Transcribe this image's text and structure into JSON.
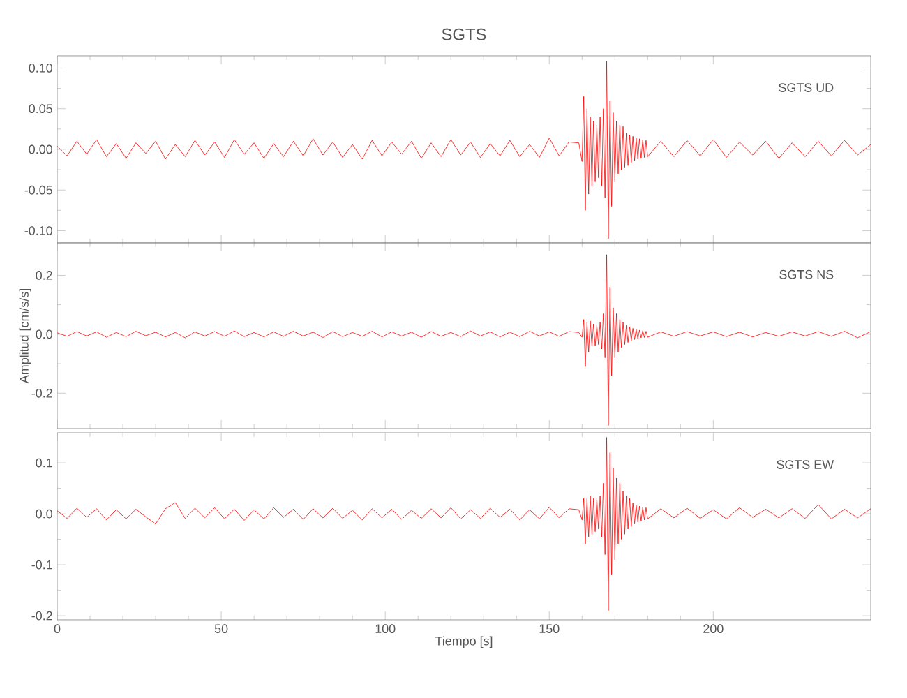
{
  "chart_data": [
    {
      "type": "line",
      "title": "SGTS",
      "annotations": [
        "SGTS UD"
      ],
      "tick_labels": "y",
      "x": [
        0,
        3,
        6,
        9,
        12,
        15,
        18,
        21,
        24,
        27,
        30,
        33,
        36,
        39,
        42,
        45,
        48,
        51,
        54,
        57,
        60,
        63,
        66,
        69,
        72,
        75,
        78,
        81,
        84,
        87,
        90,
        93,
        96,
        99,
        102,
        105,
        108,
        111,
        114,
        117,
        120,
        123,
        126,
        129,
        132,
        135,
        138,
        141,
        144,
        147,
        150,
        153,
        156,
        159,
        160,
        160.5,
        161,
        161.5,
        162,
        162.5,
        163,
        163.5,
        164,
        164.5,
        165,
        165.5,
        166,
        166.5,
        167,
        167.5,
        168,
        168.5,
        169,
        169.5,
        170,
        170.5,
        171,
        171.5,
        172,
        172.5,
        173,
        173.5,
        174,
        174.5,
        175,
        175.5,
        176,
        176.5,
        177,
        177.5,
        178,
        178.5,
        179,
        179.5,
        180,
        184,
        188,
        192,
        196,
        200,
        204,
        208,
        212,
        216,
        220,
        224,
        228,
        232,
        236,
        240,
        244,
        248
      ],
      "series": [
        {
          "color": "#ff0000",
          "values": [
            0.004,
            -0.008,
            0.01,
            -0.006,
            0.012,
            -0.009,
            0.007,
            -0.011,
            0.008,
            -0.005,
            0.01,
            -0.012,
            0.006,
            -0.009,
            0.011,
            -0.007,
            0.009,
            -0.01,
            0.012,
            -0.006,
            0.008,
            -0.011,
            0.007,
            -0.009,
            0.01,
            -0.008,
            0.013,
            -0.007,
            0.009,
            -0.01,
            0.006,
            -0.012,
            0.011,
            -0.008,
            0.009,
            -0.006,
            0.01,
            -0.011,
            0.008,
            -0.009,
            0.012,
            -0.007,
            0.009,
            -0.01,
            0.007,
            -0.008,
            0.011,
            -0.009,
            0.006,
            -0.01,
            0.014,
            -0.008,
            0.009,
            0.008,
            -0.015,
            0.065,
            -0.075,
            0.05,
            -0.055,
            0.04,
            -0.045,
            0.035,
            -0.04,
            0.03,
            -0.035,
            0.04,
            -0.045,
            0.05,
            -0.06,
            0.108,
            -0.11,
            0.06,
            -0.07,
            0.045,
            -0.04,
            0.035,
            -0.03,
            0.03,
            -0.025,
            0.028,
            -0.022,
            0.02,
            -0.02,
            0.018,
            -0.016,
            0.016,
            -0.014,
            0.014,
            -0.012,
            0.013,
            -0.011,
            0.012,
            -0.01,
            0.011,
            -0.009,
            0.01,
            -0.009,
            0.011,
            -0.008,
            0.012,
            -0.01,
            0.009,
            -0.007,
            0.01,
            -0.011,
            0.008,
            -0.009,
            0.01,
            -0.008,
            0.011,
            -0.007,
            0.006
          ]
        }
      ],
      "xlim": [
        0,
        248
      ],
      "ylim": [
        -0.115,
        0.115
      ],
      "xticks": [
        0,
        50,
        100,
        150,
        200
      ],
      "yticks": [
        {
          "value": -0.1,
          "label": "-0.10"
        },
        {
          "value": -0.05,
          "label": "-0.05"
        },
        {
          "value": 0,
          "label": "0.00"
        },
        {
          "value": 0.05,
          "label": "0.05"
        },
        {
          "value": 0.1,
          "label": "0.10"
        }
      ]
    },
    {
      "type": "line",
      "ylabel": "Amplitud [cm/s/s]",
      "annotations": [
        "SGTS NS"
      ],
      "tick_labels": "y",
      "x": [
        0,
        3,
        6,
        9,
        12,
        15,
        18,
        21,
        24,
        27,
        30,
        33,
        36,
        39,
        42,
        45,
        48,
        51,
        54,
        57,
        60,
        63,
        66,
        69,
        72,
        75,
        78,
        81,
        84,
        87,
        90,
        93,
        96,
        99,
        102,
        105,
        108,
        111,
        114,
        117,
        120,
        123,
        126,
        129,
        132,
        135,
        138,
        141,
        144,
        147,
        150,
        153,
        156,
        159,
        160,
        160.5,
        161,
        161.5,
        162,
        162.5,
        163,
        163.5,
        164,
        164.5,
        165,
        165.5,
        166,
        166.5,
        167,
        167.5,
        168,
        168.5,
        169,
        169.5,
        170,
        170.5,
        171,
        171.5,
        172,
        172.5,
        173,
        173.5,
        174,
        174.5,
        175,
        175.5,
        176,
        176.5,
        177,
        177.5,
        178,
        178.5,
        179,
        179.5,
        180,
        184,
        188,
        192,
        196,
        200,
        204,
        208,
        212,
        216,
        220,
        224,
        228,
        232,
        236,
        240,
        244,
        248
      ],
      "series": [
        {
          "color": "#ff0000",
          "values": [
            0.005,
            -0.007,
            0.009,
            -0.006,
            0.008,
            -0.01,
            0.006,
            -0.008,
            0.01,
            -0.005,
            0.007,
            -0.009,
            0.006,
            -0.012,
            0.008,
            -0.006,
            0.009,
            -0.007,
            0.011,
            -0.008,
            0.006,
            -0.009,
            0.008,
            -0.007,
            0.01,
            -0.006,
            0.007,
            -0.011,
            0.009,
            -0.008,
            0.006,
            -0.007,
            0.01,
            -0.009,
            0.008,
            -0.006,
            0.007,
            -0.01,
            0.009,
            -0.007,
            0.006,
            -0.008,
            0.011,
            -0.006,
            0.008,
            -0.009,
            0.007,
            -0.008,
            0.01,
            -0.006,
            0.008,
            -0.007,
            0.009,
            0.006,
            -0.01,
            0.05,
            -0.11,
            0.04,
            -0.06,
            0.045,
            -0.04,
            0.035,
            -0.04,
            0.03,
            -0.035,
            0.04,
            -0.05,
            0.07,
            -0.08,
            0.27,
            -0.31,
            0.16,
            -0.14,
            0.09,
            -0.08,
            0.07,
            -0.06,
            0.05,
            -0.045,
            0.04,
            -0.035,
            0.03,
            -0.028,
            0.025,
            -0.022,
            0.02,
            -0.018,
            0.016,
            -0.015,
            0.014,
            -0.012,
            0.012,
            -0.011,
            0.01,
            -0.01,
            0.008,
            -0.007,
            0.009,
            -0.006,
            0.008,
            -0.008,
            0.007,
            -0.009,
            0.006,
            -0.007,
            0.008,
            -0.006,
            0.009,
            -0.007,
            0.01,
            -0.012,
            0.009
          ]
        }
      ],
      "xlim": [
        0,
        248
      ],
      "ylim": [
        -0.32,
        0.31
      ],
      "xticks": [
        0,
        50,
        100,
        150,
        200
      ],
      "yticks": [
        -0.2,
        {
          "value": 0,
          "label": "0.0"
        },
        0.2
      ]
    },
    {
      "type": "line",
      "xlabel": "Tiempo [s]",
      "annotations": [
        "SGTS EW"
      ],
      "x": [
        0,
        3,
        6,
        9,
        12,
        15,
        18,
        21,
        24,
        27,
        30,
        33,
        36,
        39,
        42,
        45,
        48,
        51,
        54,
        57,
        60,
        63,
        66,
        69,
        72,
        75,
        78,
        81,
        84,
        87,
        90,
        93,
        96,
        99,
        102,
        105,
        108,
        111,
        114,
        117,
        120,
        123,
        126,
        129,
        132,
        135,
        138,
        141,
        144,
        147,
        150,
        153,
        156,
        159,
        160,
        160.5,
        161,
        161.5,
        162,
        162.5,
        163,
        163.5,
        164,
        164.5,
        165,
        165.5,
        166,
        166.5,
        167,
        167.5,
        168,
        168.5,
        169,
        169.5,
        170,
        170.5,
        171,
        171.5,
        172,
        172.5,
        173,
        173.5,
        174,
        174.5,
        175,
        175.5,
        176,
        176.5,
        177,
        177.5,
        178,
        178.5,
        179,
        179.5,
        180,
        184,
        188,
        192,
        196,
        200,
        204,
        208,
        212,
        216,
        220,
        224,
        228,
        232,
        236,
        240,
        244,
        248
      ],
      "series": [
        {
          "color": "#ff0000",
          "values": [
            0.006,
            -0.009,
            0.011,
            -0.007,
            0.01,
            -0.012,
            0.008,
            -0.01,
            0.009,
            -0.006,
            -0.02,
            0.01,
            0.022,
            -0.009,
            0.011,
            -0.008,
            0.012,
            -0.01,
            0.009,
            -0.013,
            0.008,
            -0.01,
            0.012,
            -0.007,
            0.009,
            -0.011,
            0.01,
            -0.008,
            0.011,
            -0.009,
            0.007,
            -0.012,
            0.01,
            -0.008,
            0.009,
            -0.011,
            0.007,
            -0.009,
            0.01,
            -0.008,
            0.012,
            -0.01,
            0.008,
            -0.009,
            0.011,
            -0.007,
            0.009,
            -0.012,
            0.008,
            -0.01,
            0.013,
            -0.008,
            0.01,
            0.008,
            -0.012,
            0.03,
            -0.06,
            0.03,
            -0.045,
            0.035,
            -0.04,
            0.03,
            -0.035,
            0.03,
            -0.03,
            0.035,
            -0.045,
            0.06,
            -0.08,
            0.15,
            -0.19,
            0.12,
            -0.12,
            0.09,
            -0.09,
            0.07,
            -0.06,
            0.06,
            -0.05,
            0.045,
            -0.04,
            0.035,
            -0.03,
            0.03,
            -0.025,
            0.022,
            -0.02,
            0.018,
            -0.016,
            0.015,
            -0.014,
            0.013,
            -0.012,
            0.012,
            -0.01,
            0.01,
            -0.008,
            0.011,
            -0.009,
            0.008,
            -0.01,
            0.012,
            -0.007,
            0.009,
            -0.008,
            0.01,
            -0.009,
            0.018,
            -0.01,
            0.009,
            -0.008,
            0.01
          ]
        }
      ],
      "xlim": [
        0,
        248
      ],
      "ylim": [
        -0.208,
        0.159
      ],
      "xticks": [
        0,
        50,
        100,
        150,
        200
      ],
      "yticks": [
        -0.2,
        -0.1,
        {
          "value": 0,
          "label": "0.0"
        },
        0.1
      ]
    }
  ]
}
